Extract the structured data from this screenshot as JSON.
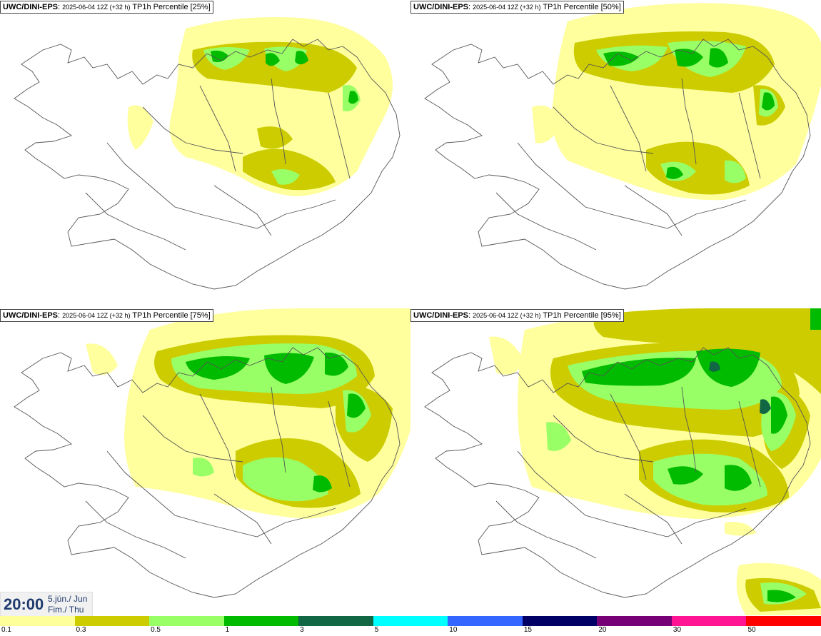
{
  "panels": [
    {
      "source": "UWC/DINI-EPS",
      "run": "2025-06-04 12Z (+32 h)",
      "title": "TP1h Percentile [25%]"
    },
    {
      "source": "UWC/DINI-EPS",
      "run": "2025-06-04 12Z (+32 h)",
      "title": "TP1h Percentile [50%]"
    },
    {
      "source": "UWC/DINI-EPS",
      "run": "2025-06-04 12Z (+32 h)",
      "title": "TP1h Percentile [75%]"
    },
    {
      "source": "UWC/DINI-EPS",
      "run": "2025-06-04 12Z (+32 h)",
      "title": "TP1h Percentile [95%]"
    }
  ],
  "valid_time": {
    "clock": "20:00",
    "date_line1": "5.jún./ Jun",
    "date_line2": "Fim./ Thu"
  },
  "legend": {
    "colors": [
      "#ffff99",
      "#cccc00",
      "#99ff66",
      "#00bb00",
      "#116644",
      "#00ffff",
      "#3366ff",
      "#000066",
      "#770077",
      "#ff1493",
      "#ff0000"
    ],
    "ticks": [
      "0.1",
      "0.3",
      "0.5",
      "1",
      "3",
      "5",
      "10",
      "15",
      "20",
      "30",
      "50"
    ]
  }
}
